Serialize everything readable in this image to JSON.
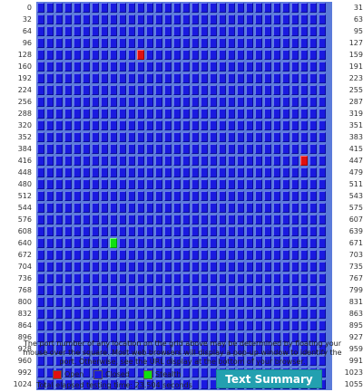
{
  "grid": {
    "ports_per_row": 32,
    "rows": [
      {
        "start": "0",
        "end": "31"
      },
      {
        "start": "32",
        "end": "63"
      },
      {
        "start": "64",
        "end": "95"
      },
      {
        "start": "96",
        "end": "127"
      },
      {
        "start": "128",
        "end": "159"
      },
      {
        "start": "160",
        "end": "191"
      },
      {
        "start": "192",
        "end": "223"
      },
      {
        "start": "224",
        "end": "255"
      },
      {
        "start": "256",
        "end": "287"
      },
      {
        "start": "288",
        "end": "319"
      },
      {
        "start": "320",
        "end": "351"
      },
      {
        "start": "352",
        "end": "383"
      },
      {
        "start": "384",
        "end": "415"
      },
      {
        "start": "416",
        "end": "447"
      },
      {
        "start": "448",
        "end": "479"
      },
      {
        "start": "480",
        "end": "511"
      },
      {
        "start": "512",
        "end": "543"
      },
      {
        "start": "544",
        "end": "575"
      },
      {
        "start": "576",
        "end": "607"
      },
      {
        "start": "608",
        "end": "639"
      },
      {
        "start": "640",
        "end": "671"
      },
      {
        "start": "672",
        "end": "703"
      },
      {
        "start": "704",
        "end": "735"
      },
      {
        "start": "736",
        "end": "767"
      },
      {
        "start": "768",
        "end": "799"
      },
      {
        "start": "800",
        "end": "831"
      },
      {
        "start": "832",
        "end": "863"
      },
      {
        "start": "864",
        "end": "895"
      },
      {
        "start": "896",
        "end": "927"
      },
      {
        "start": "928",
        "Description": null,
        "end": "959"
      },
      {
        "start": "960",
        "end": "991"
      },
      {
        "start": "992",
        "end": "1023"
      },
      {
        "start": "1024",
        "end": "1055"
      }
    ],
    "open_ports": [
      139,
      445
    ],
    "stealth_ports": [
      648
    ],
    "default_state": "closed"
  },
  "note": "The port number of any location on the grid above may be determined by floating your mouse over the square. Most web browsers will display a pop-up window to identify the port. Otherwise, see the URL display at the bottom of your browser.",
  "legend": [
    {
      "label": "Open",
      "color": "#e01010"
    },
    {
      "label": "Closed",
      "color": "#1a1ae0"
    },
    {
      "label": "Stealth",
      "color": "#10e010"
    }
  ],
  "elapsed": "Total elapsed testing time: 23.504 seconds",
  "summary_button": "Text Summary"
}
